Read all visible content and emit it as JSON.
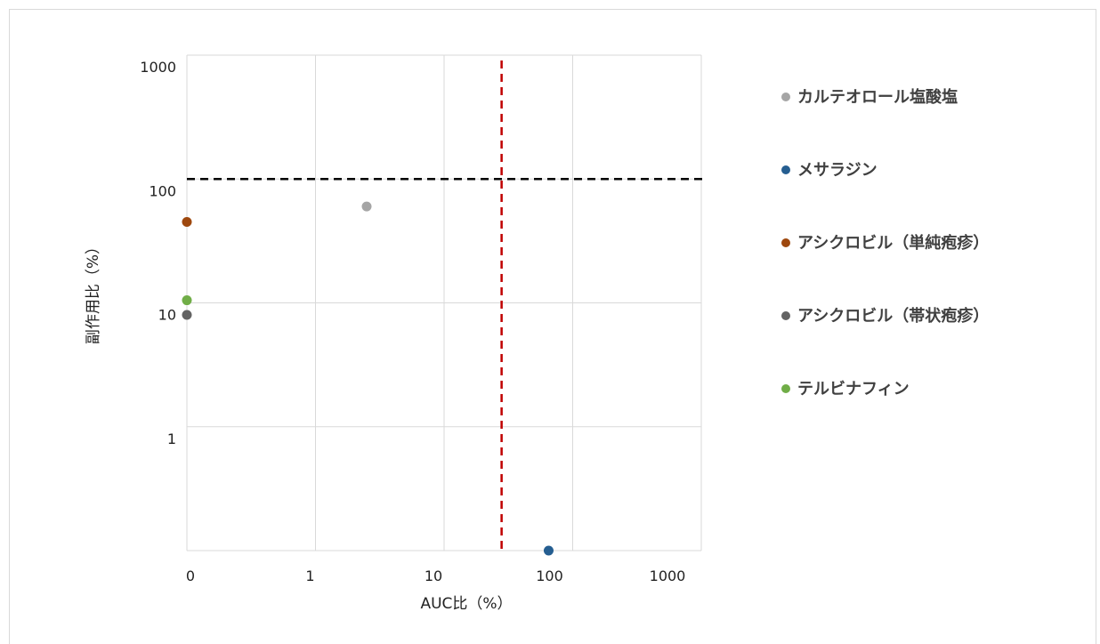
{
  "chart_data": {
    "type": "scatter",
    "title": "",
    "xlabel": "AUC比（%）",
    "ylabel": "副作用比（%）",
    "x_scale": "log",
    "y_scale": "log",
    "x_ticks": [
      "0",
      "1",
      "10",
      "100",
      "1000"
    ],
    "y_ticks": [
      "1000",
      "100",
      "10",
      "1"
    ],
    "grid": true,
    "legend_position": "right",
    "reference_lines": [
      {
        "orientation": "horizontal",
        "value": 100,
        "color": "#000000",
        "style": "dashed"
      },
      {
        "orientation": "vertical",
        "value": 28,
        "color": "#c00000",
        "style": "dashed"
      }
    ],
    "series": [
      {
        "name": "カルテオロール塩酸塩",
        "color": "#a5a5a5",
        "points": [
          {
            "x": 2.5,
            "y": 60
          }
        ]
      },
      {
        "name": "メサラジン",
        "color": "#255e91",
        "points": [
          {
            "x": 65,
            "y": 0.1
          }
        ]
      },
      {
        "name": "アシクロビル（単純疱疹）",
        "color": "#9e480e",
        "points": [
          {
            "x": 0.1,
            "y": 45
          }
        ]
      },
      {
        "name": "アシクロビル（帯状疱疹）",
        "color": "#636363",
        "points": [
          {
            "x": 0.1,
            "y": 8
          }
        ]
      },
      {
        "name": "テルビナフィン",
        "color": "#70ad47",
        "points": [
          {
            "x": 0.1,
            "y": 10.5
          }
        ]
      }
    ]
  }
}
